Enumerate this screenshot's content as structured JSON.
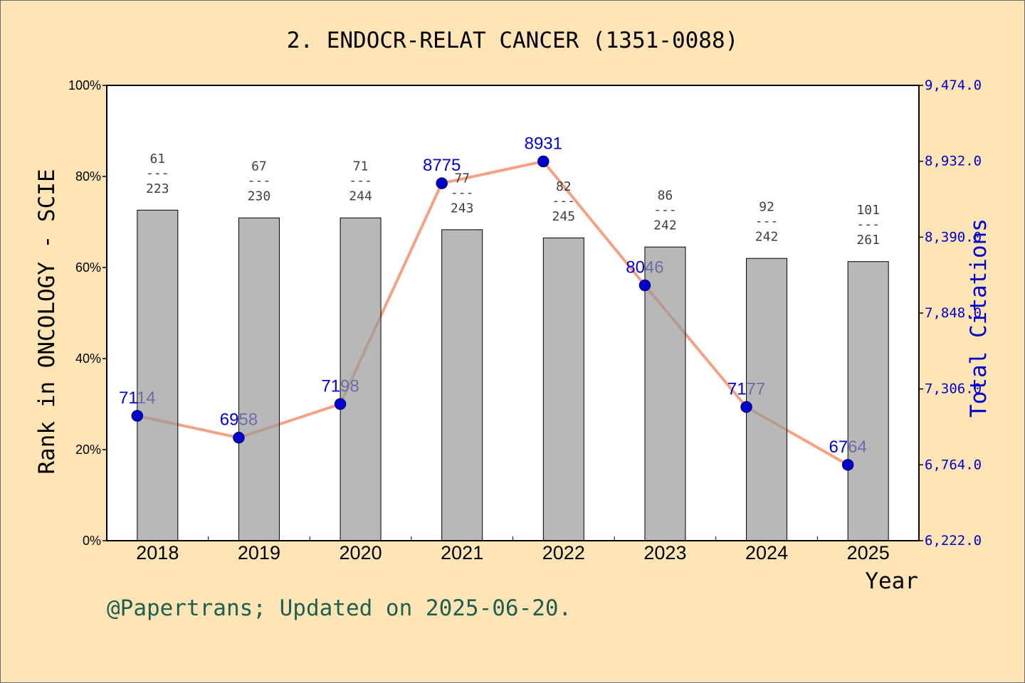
{
  "footer": "@Papertrans; Updated on 2025-06-20.",
  "colors": {
    "background": "#FFE4B5",
    "plot_background": "#FFFFFF",
    "axis": "#000000",
    "text": "#000000",
    "bar": "#9A9A9A",
    "bar_edge": "#000000",
    "line": "#F4A283",
    "marker": "#0000CD",
    "marker_edge": "#00008B",
    "citations_text": "#0000CD",
    "rank_text": "#404040",
    "footer_text": "#1F5F4F",
    "image_border": "#6B6B6B"
  },
  "chart_data": {
    "type": "bar",
    "title": "2. ENDOCR-RELAT CANCER (1351-0088)",
    "xlabel": "Year",
    "ylabel": "Rank in ONCOLOGY - SCIE",
    "y2label": "Total Citations",
    "categories": [
      "2018",
      "2019",
      "2020",
      "2021",
      "2022",
      "2023",
      "2024",
      "2025"
    ],
    "ylim": [
      0,
      100
    ],
    "yticks": [
      {
        "value": 0,
        "label": "0%"
      },
      {
        "value": 20,
        "label": "20%"
      },
      {
        "value": 40,
        "label": "40%"
      },
      {
        "value": 60,
        "label": "60%"
      },
      {
        "value": 80,
        "label": "80%"
      },
      {
        "value": 100,
        "label": "100%"
      }
    ],
    "y2lim": [
      6222,
      9474
    ],
    "y2ticks": [
      {
        "value": 6222,
        "label": "6,222.0"
      },
      {
        "value": 6764,
        "label": "6,764.0"
      },
      {
        "value": 7306,
        "label": "7,306.0"
      },
      {
        "value": 7848,
        "label": "7,848.0"
      },
      {
        "value": 8390,
        "label": "8,390.0"
      },
      {
        "value": 8932,
        "label": "8,932.0"
      },
      {
        "value": 9474,
        "label": "9,474.0"
      }
    ],
    "rank_separator": "---",
    "series": [
      {
        "type": "bar",
        "axis": "left",
        "values": [
          72.6,
          70.9,
          70.9,
          68.3,
          66.5,
          64.5,
          62.0,
          61.3
        ],
        "rank_labels": [
          {
            "rank": "61",
            "total": "223"
          },
          {
            "rank": "67",
            "total": "230"
          },
          {
            "rank": "71",
            "total": "244"
          },
          {
            "rank": "77",
            "total": "243"
          },
          {
            "rank": "82",
            "total": "245"
          },
          {
            "rank": "86",
            "total": "242"
          },
          {
            "rank": "92",
            "total": "242"
          },
          {
            "rank": "101",
            "total": "261"
          }
        ]
      },
      {
        "type": "line",
        "axis": "right",
        "values": [
          7114,
          6958,
          7198,
          8775,
          8931,
          8046,
          7177,
          6764
        ]
      }
    ],
    "grid": false,
    "legend": "none"
  }
}
